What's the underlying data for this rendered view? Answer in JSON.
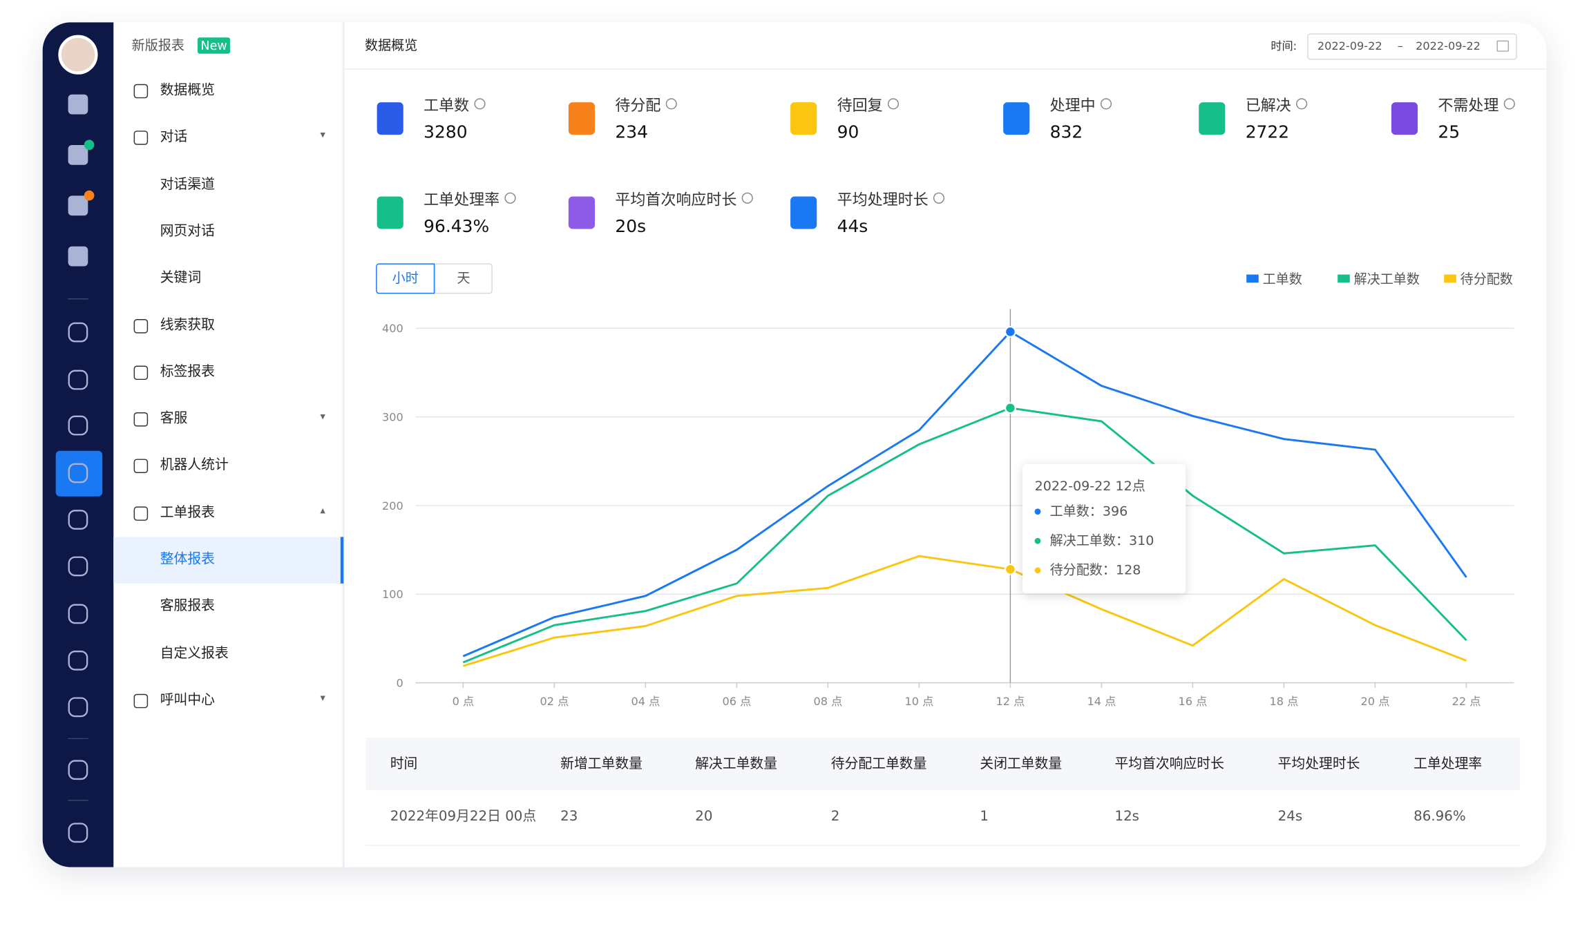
{
  "brand": {
    "title": "新版报表",
    "badge": "New"
  },
  "menu": [
    {
      "label": "数据概览"
    },
    {
      "label": "对话",
      "children": [
        "对话渠道",
        "网页对话",
        "关键词"
      ]
    },
    {
      "label": "线索获取"
    },
    {
      "label": "标签报表"
    },
    {
      "label": "客服"
    },
    {
      "label": "机器人统计"
    },
    {
      "label": "工单报表",
      "children": [
        "整体报表",
        "客服报表",
        "自定义报表"
      ]
    },
    {
      "label": "呼叫中心"
    }
  ],
  "header": {
    "title": "数据概览",
    "time_label": "时间:",
    "start": "2022-09-22",
    "separator": "–",
    "end": "2022-09-22"
  },
  "stats": [
    {
      "label": "工单数",
      "value": "3280"
    },
    {
      "label": "待分配",
      "value": "234"
    },
    {
      "label": "待回复",
      "value": "90"
    },
    {
      "label": "处理中",
      "value": "832"
    },
    {
      "label": "已解决",
      "value": "2722"
    },
    {
      "label": "不需处理",
      "value": "25"
    },
    {
      "label": "工单处理率",
      "value": "96.43%"
    },
    {
      "label": "平均首次响应时长",
      "value": "20s"
    },
    {
      "label": "平均处理时长",
      "value": "44s"
    }
  ],
  "toggle": [
    "小时",
    "天"
  ],
  "chart_data": {
    "type": "line",
    "categories": [
      "0 点",
      "02 点",
      "04 点",
      "06 点",
      "08 点",
      "10 点",
      "12 点",
      "14 点",
      "16 点",
      "18 点",
      "20 点",
      "22 点"
    ],
    "series": [
      {
        "name": "工单数",
        "color": "#1a78f2",
        "values": [
          30,
          74,
          98,
          150,
          222,
          285,
          396,
          335,
          301,
          275,
          263,
          119
        ]
      },
      {
        "name": "解决工单数",
        "color": "#16bf8a",
        "values": [
          23,
          65,
          81,
          112,
          211,
          269,
          310,
          295,
          211,
          146,
          155,
          48
        ]
      },
      {
        "name": "待分配数",
        "color": "#fac60f",
        "values": [
          19,
          51,
          64,
          98,
          107,
          143,
          128,
          83,
          42,
          117,
          65,
          25
        ]
      }
    ],
    "ylim": [
      0,
      400
    ],
    "yticks": [
      0,
      100,
      200,
      300,
      400
    ],
    "grid": true,
    "tooltip": {
      "title": "2022-09-22  12点",
      "items": [
        "工单数：396",
        "解决工单数：310",
        "待分配数：128"
      ]
    }
  },
  "table": {
    "columns": [
      "时间",
      "新增工单数量",
      "解决工单数量",
      "待分配工单数量",
      "关闭工单数量",
      "平均首次响应时长",
      "平均处理时长",
      "工单处理率"
    ],
    "rows": [
      [
        "2022年09月22日 00点",
        "23",
        "20",
        "2",
        "1",
        "12s",
        "24s",
        "86.96%"
      ]
    ]
  }
}
